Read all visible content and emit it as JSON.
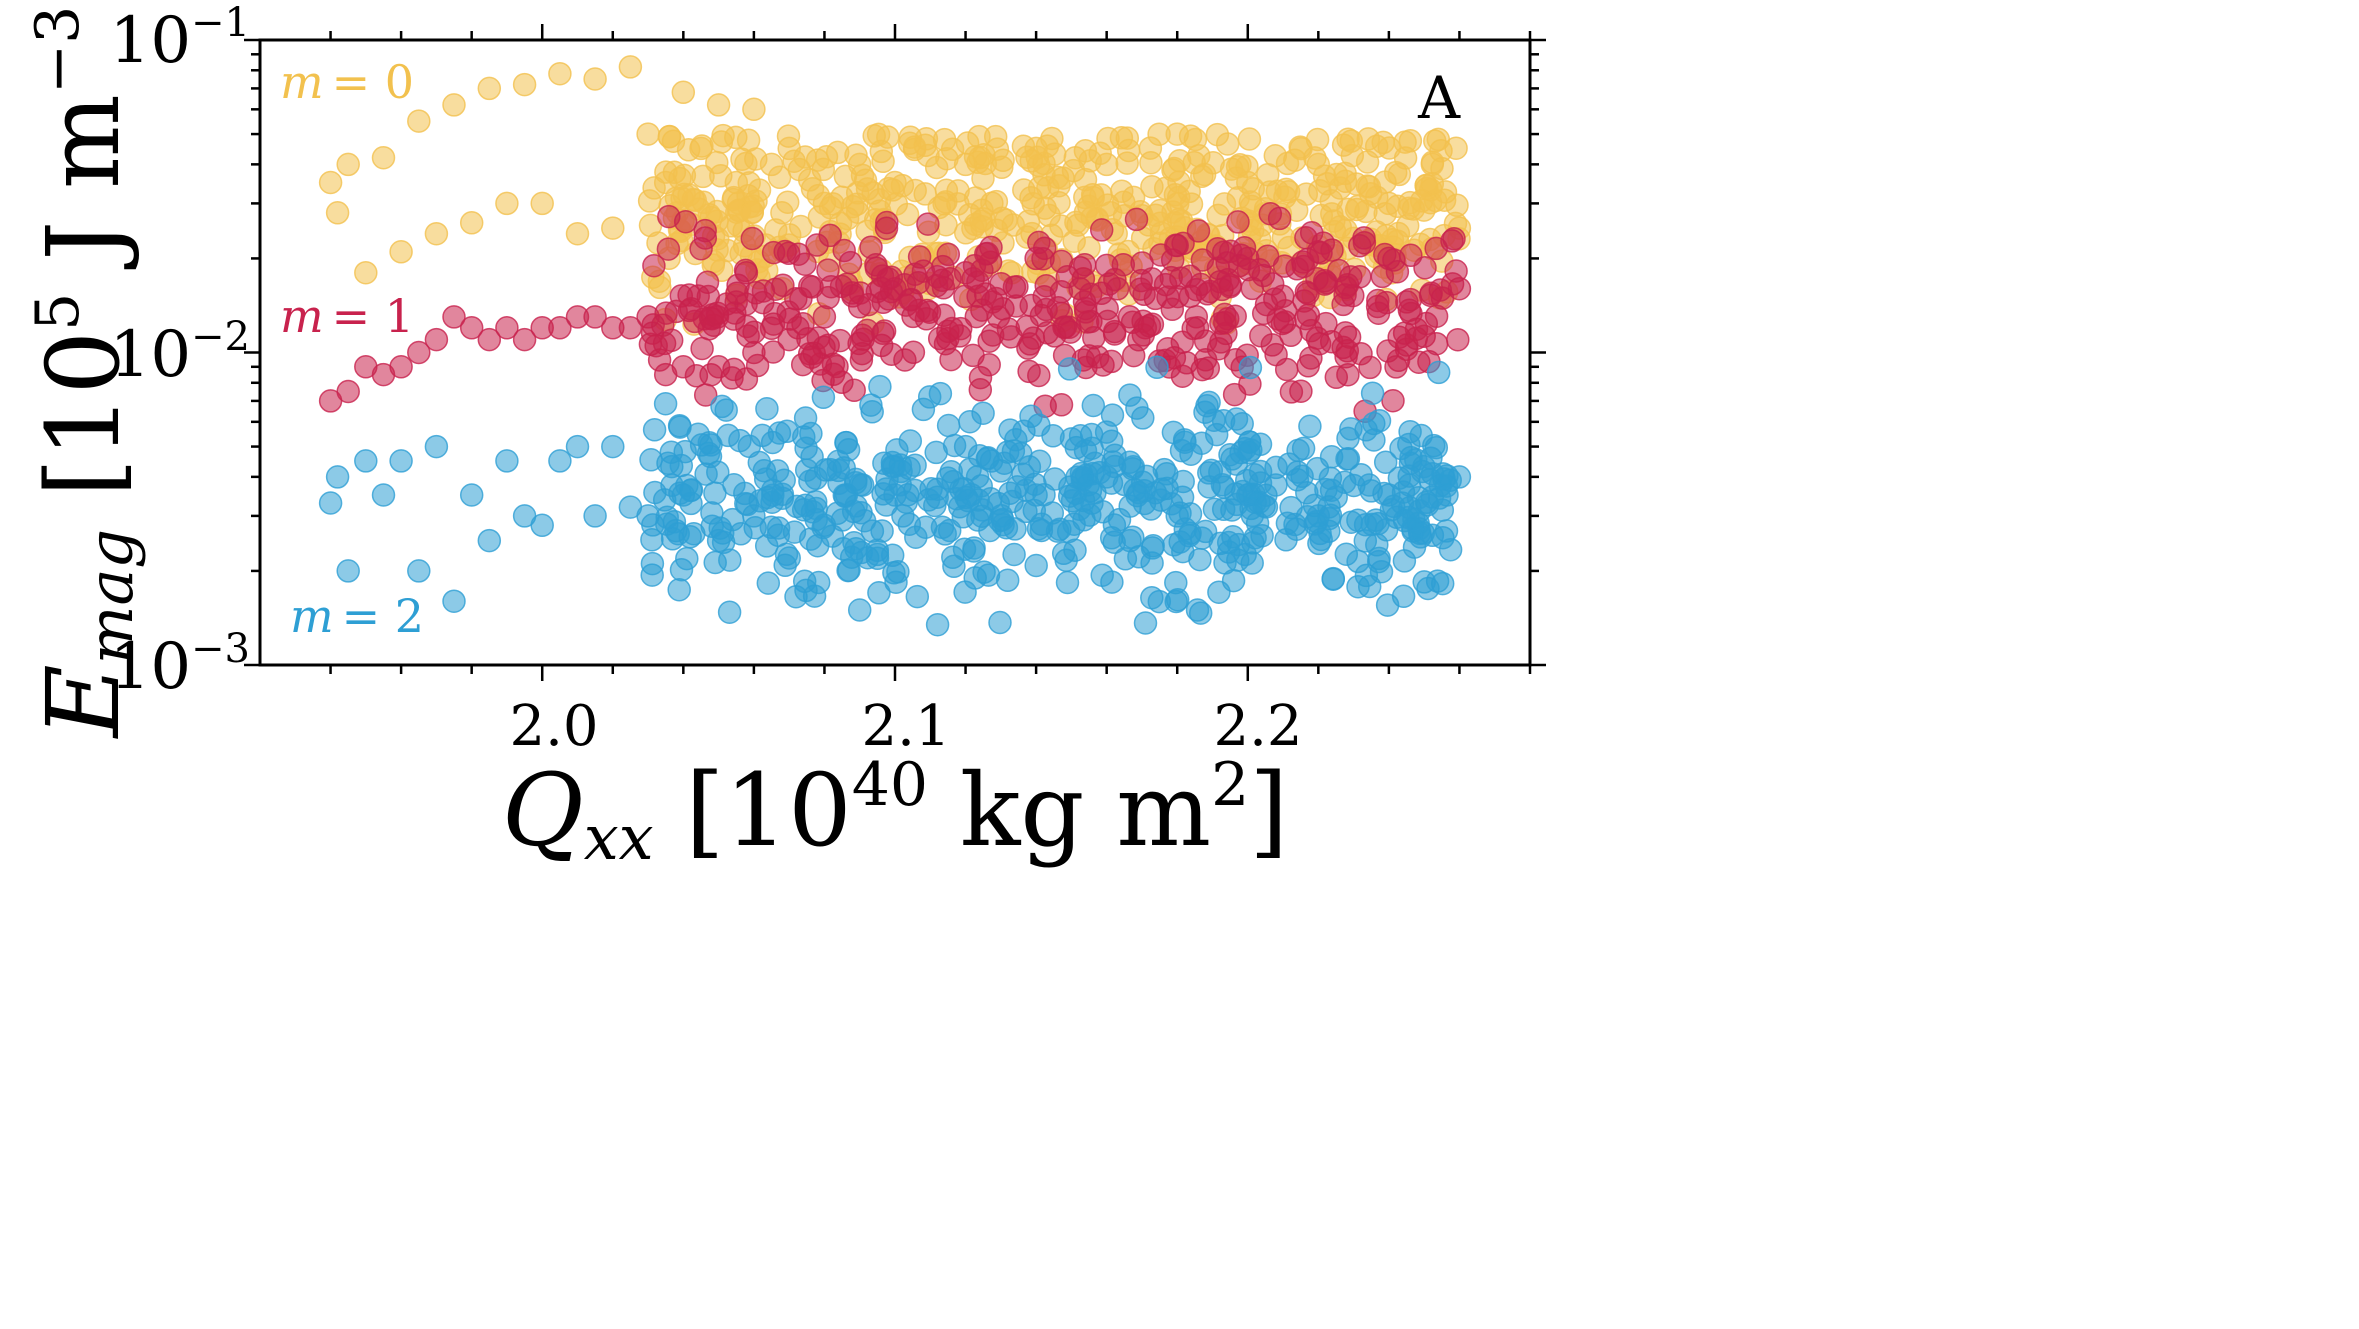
{
  "chart_data": {
    "type": "scatter",
    "panel_label": "A",
    "xlabel": {
      "main": "Q",
      "sub": "xx",
      "unit_open": " [10",
      "unit_exp": "40",
      "unit_mid": " kg m",
      "unit_exp2": "2",
      "unit_close": "]"
    },
    "ylabel": {
      "main": "E",
      "sub": "mag",
      "unit_open": " [10",
      "unit_exp": "5",
      "unit_mid": " J m",
      "unit_exp2": "−3",
      "unit_close": "]"
    },
    "xlim": [
      1.92,
      2.28
    ],
    "ylim": [
      0.001,
      0.1
    ],
    "yscale": "log",
    "x_ticks": [
      {
        "value": 2.0,
        "label": "2.0"
      },
      {
        "value": 2.1,
        "label": "2.1"
      },
      {
        "value": 2.2,
        "label": "2.2"
      }
    ],
    "y_ticks": [
      {
        "value": 0.1,
        "base": "10",
        "exp": "−1"
      },
      {
        "value": 0.01,
        "base": "10",
        "exp": "−2"
      },
      {
        "value": 0.001,
        "base": "10",
        "exp": "−3"
      }
    ],
    "series": [
      {
        "name": "m = 0",
        "label_lhs": "m",
        "label_rhs": "= 0",
        "color": "#f2c14e",
        "center": 0.028,
        "spread": 0.35,
        "x": [
          1.94,
          1.942,
          1.945,
          1.95,
          1.955,
          1.96,
          1.965,
          1.97,
          1.975,
          1.98,
          1.985,
          1.99,
          1.995,
          2.0,
          2.005,
          2.01,
          2.015,
          2.02,
          2.025,
          2.03,
          2.035,
          2.04,
          2.045,
          2.05,
          2.055,
          2.06,
          2.065,
          2.07,
          2.08,
          2.09,
          2.1,
          2.12,
          2.14,
          2.16,
          2.18,
          2.2,
          2.22,
          2.24,
          2.26
        ],
        "y": [
          0.035,
          0.028,
          0.04,
          0.018,
          0.042,
          0.021,
          0.055,
          0.024,
          0.062,
          0.026,
          0.07,
          0.03,
          0.072,
          0.03,
          0.078,
          0.024,
          0.075,
          0.025,
          0.082,
          0.05,
          0.035,
          0.068,
          0.045,
          0.062,
          0.035,
          0.06,
          0.04,
          0.045,
          0.03,
          0.04,
          0.035,
          0.04,
          0.045,
          0.04,
          0.05,
          0.035,
          0.04,
          0.03,
          0.025
        ],
        "cloud": {
          "x_min": 2.03,
          "x_max": 2.26,
          "y_min": 0.012,
          "y_max": 0.05,
          "count": 520
        }
      },
      {
        "name": "m = 1",
        "label_lhs": "m",
        "label_rhs": "= 1",
        "color": "#c8224d",
        "center": 0.014,
        "spread": 0.3,
        "x": [
          1.94,
          1.945,
          1.95,
          1.955,
          1.96,
          1.965,
          1.97,
          1.975,
          1.98,
          1.985,
          1.99,
          1.995,
          2.0,
          2.005,
          2.01,
          2.015,
          2.02,
          2.025,
          2.03,
          2.035,
          2.04,
          2.05,
          2.06,
          2.07,
          2.08,
          2.09,
          2.1,
          2.12,
          2.14,
          2.16,
          2.18,
          2.2,
          2.22,
          2.24,
          2.26
        ],
        "y": [
          0.007,
          0.0075,
          0.009,
          0.0085,
          0.009,
          0.01,
          0.011,
          0.013,
          0.012,
          0.011,
          0.012,
          0.011,
          0.012,
          0.012,
          0.013,
          0.013,
          0.012,
          0.012,
          0.013,
          0.0085,
          0.009,
          0.009,
          0.01,
          0.011,
          0.013,
          0.014,
          0.016,
          0.018,
          0.02,
          0.019,
          0.022,
          0.02,
          0.021,
          0.02,
          0.016
        ],
        "cloud": {
          "x_min": 2.03,
          "x_max": 2.26,
          "y_min": 0.0062,
          "y_max": 0.028,
          "count": 430
        }
      },
      {
        "name": "m = 2",
        "label_lhs": "m",
        "label_rhs": "= 2",
        "color": "#2e9fd4",
        "center": 0.0035,
        "spread": 0.35,
        "x": [
          1.94,
          1.942,
          1.945,
          1.95,
          1.955,
          1.96,
          1.965,
          1.97,
          1.975,
          1.98,
          1.985,
          1.99,
          1.995,
          2.0,
          2.005,
          2.01,
          2.015,
          2.02,
          2.025,
          2.03,
          2.04,
          2.05,
          2.06,
          2.07,
          2.08,
          2.09,
          2.1,
          2.12,
          2.14,
          2.16,
          2.18,
          2.2,
          2.22,
          2.24,
          2.26
        ],
        "y": [
          0.0033,
          0.004,
          0.002,
          0.0045,
          0.0035,
          0.0045,
          0.002,
          0.005,
          0.0016,
          0.0035,
          0.0025,
          0.0045,
          0.003,
          0.0028,
          0.0045,
          0.005,
          0.003,
          0.005,
          0.0032,
          0.003,
          0.0035,
          0.0025,
          0.003,
          0.0022,
          0.0028,
          0.0015,
          0.0035,
          0.005,
          0.0035,
          0.004,
          0.003,
          0.0035,
          0.003,
          0.0035,
          0.004
        ],
        "cloud": {
          "x_min": 2.03,
          "x_max": 2.26,
          "y_min": 0.0013,
          "y_max": 0.0095,
          "count": 560
        }
      }
    ]
  }
}
